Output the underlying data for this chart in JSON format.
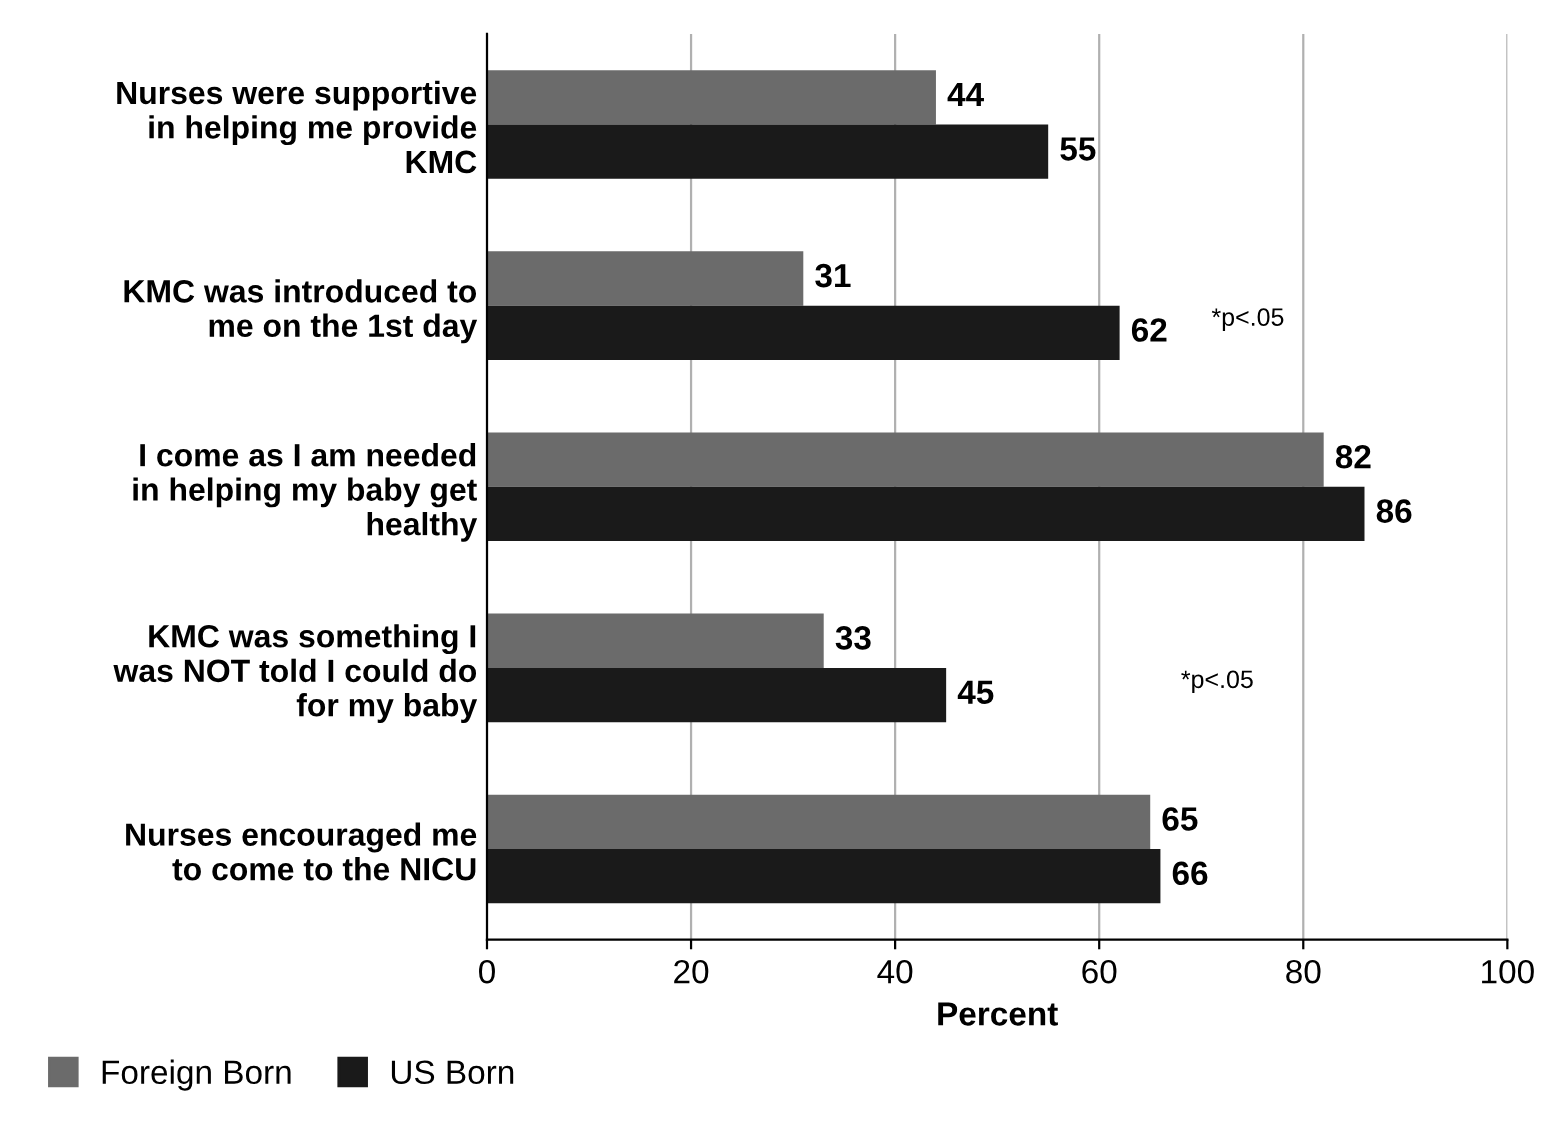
{
  "chart_data": {
    "type": "bar",
    "orientation": "horizontal",
    "xlabel": "Percent",
    "categories": [
      "Nurses were supportive\nin helping me provide\nKMC",
      "KMC was introduced to\nme on the 1st day",
      "I come as I am needed\nin helping my baby get\nhealthy",
      "KMC was something I\nwas NOT told I could do\nfor my baby",
      "Nurses encouraged me\nto come to the NICU"
    ],
    "series": [
      {
        "name": "Foreign Born",
        "color": "#6b6b6b",
        "values": [
          44,
          31,
          82,
          33,
          65
        ]
      },
      {
        "name": "US Born",
        "color": "#1a1a1a",
        "values": [
          55,
          62,
          86,
          45,
          66
        ]
      }
    ],
    "xlim": [
      0,
      100
    ],
    "xticks": [
      0,
      20,
      40,
      60,
      80,
      100
    ],
    "grid": "x",
    "data_labels": true,
    "legend": "bottom left",
    "annotations": [
      "*p<.05",
      "*p<.05"
    ]
  }
}
